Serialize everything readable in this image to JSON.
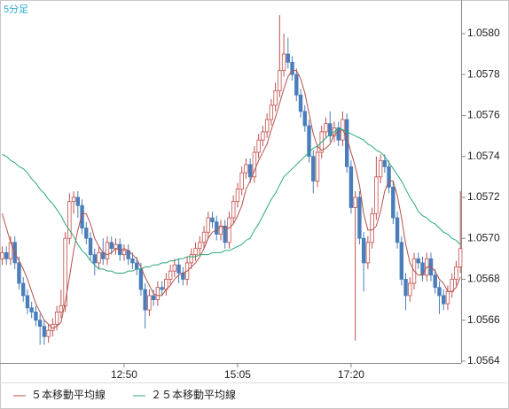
{
  "chart_data": {
    "type": "candlestick",
    "label": "5分足",
    "categories": [
      null,
      null,
      null,
      null,
      null,
      null,
      null,
      null,
      null,
      null,
      null,
      null,
      null,
      null,
      null,
      null,
      null,
      null,
      null,
      null,
      null,
      null,
      null,
      null,
      null,
      null,
      null,
      null,
      null,
      "12:50",
      null,
      null,
      null,
      null,
      null,
      null,
      null,
      null,
      null,
      null,
      null,
      null,
      null,
      null,
      null,
      null,
      null,
      null,
      null,
      null,
      null,
      null,
      null,
      null,
      null,
      null,
      "15:05",
      null,
      null,
      null,
      null,
      null,
      null,
      null,
      null,
      null,
      null,
      null,
      null,
      null,
      null,
      null,
      null,
      null,
      null,
      null,
      null,
      null,
      null,
      null,
      null,
      null,
      null,
      "17:20",
      null,
      null,
      null,
      null,
      null,
      null,
      null,
      null,
      null,
      null,
      null,
      null,
      null,
      null,
      null,
      null,
      null,
      null,
      null,
      null,
      null,
      null,
      null,
      null,
      null,
      null
    ],
    "open": [
      1.0569,
      1.05693,
      1.0569,
      1.05698,
      1.05688,
      1.05678,
      1.05672,
      1.05666,
      1.05664,
      1.0566,
      1.05657,
      1.05652,
      1.05655,
      1.05658,
      1.05664,
      1.05667,
      1.057,
      1.05718,
      1.0572,
      1.05716,
      1.05705,
      1.057,
      1.05692,
      1.05688,
      1.05693,
      1.0569,
      1.05698,
      1.05695,
      1.05697,
      1.05692,
      1.05694,
      1.0569,
      1.05688,
      1.05685,
      1.05675,
      1.05665,
      1.05672,
      1.0567,
      1.05676,
      1.05675,
      1.0568,
      1.05684,
      1.05687,
      1.05683,
      1.0568,
      1.05688,
      1.05692,
      1.05695,
      1.05698,
      1.05703,
      1.0571,
      1.05708,
      1.05702,
      1.05706,
      1.05698,
      1.0571,
      1.05718,
      1.05724,
      1.05732,
      1.05736,
      1.0573,
      1.05742,
      1.05748,
      1.05752,
      1.05758,
      1.05765,
      1.05772,
      1.05782,
      1.0579,
      1.05786,
      1.0578,
      1.0577,
      1.05762,
      1.05755,
      1.0574,
      1.05728,
      1.05742,
      1.05752,
      1.05756,
      1.0575,
      1.05754,
      1.05748,
      1.05758,
      1.05735,
      1.05715,
      1.0572,
      1.057,
      1.05688,
      1.05698,
      1.05712,
      1.0573,
      1.05738,
      1.05735,
      1.05725,
      1.0571,
      1.05698,
      1.0568,
      1.05672,
      1.05678,
      1.0569,
      1.05688,
      1.05682,
      1.0569,
      1.05682,
      1.05676,
      1.05672,
      1.05668,
      1.05674,
      1.0568,
      1.05686
    ],
    "high": [
      1.05696,
      1.05696,
      1.05701,
      1.05701,
      1.05691,
      1.05681,
      1.05675,
      1.05669,
      1.05667,
      1.05663,
      1.0566,
      1.05658,
      1.05661,
      1.05667,
      1.05675,
      1.05703,
      1.05722,
      1.05723,
      1.05723,
      1.05719,
      1.05708,
      1.05703,
      1.05695,
      1.05696,
      1.057,
      1.05701,
      1.05701,
      1.057,
      1.057,
      1.05697,
      1.05697,
      1.05693,
      1.05691,
      1.05688,
      1.05678,
      1.05675,
      1.05675,
      1.05679,
      1.05679,
      1.05683,
      1.05687,
      1.0569,
      1.0569,
      1.05686,
      1.05691,
      1.05695,
      1.05698,
      1.05701,
      1.05706,
      1.05713,
      1.05713,
      1.05711,
      1.05709,
      1.05709,
      1.05713,
      1.05721,
      1.05727,
      1.05735,
      1.05739,
      1.05739,
      1.05745,
      1.05751,
      1.05755,
      1.05761,
      1.05768,
      1.05776,
      1.05809,
      1.058,
      1.05798,
      1.05789,
      1.05783,
      1.05773,
      1.05765,
      1.05758,
      1.05743,
      1.05745,
      1.05755,
      1.05759,
      1.05762,
      1.05757,
      1.05757,
      1.05762,
      1.05761,
      1.05738,
      1.05723,
      1.05723,
      1.05703,
      1.05701,
      1.05715,
      1.0574,
      1.05741,
      1.05741,
      1.05738,
      1.05728,
      1.05713,
      1.05701,
      1.05683,
      1.05681,
      1.05693,
      1.05693,
      1.05691,
      1.05693,
      1.05693,
      1.05685,
      1.05679,
      1.05675,
      1.05677,
      1.05683,
      1.05689,
      1.05723
    ],
    "low": [
      1.05687,
      1.05687,
      1.05687,
      1.05685,
      1.05675,
      1.05669,
      1.05663,
      1.05661,
      1.05657,
      1.05648,
      1.05648,
      1.05649,
      1.05652,
      1.05655,
      1.05661,
      1.05664,
      1.05697,
      1.05712,
      1.0571,
      1.05702,
      1.05697,
      1.05689,
      1.05682,
      1.05685,
      1.05687,
      1.05687,
      1.05692,
      1.05692,
      1.05689,
      1.05689,
      1.05687,
      1.05685,
      1.05682,
      1.05672,
      1.05656,
      1.05662,
      1.05667,
      1.05667,
      1.05672,
      1.05672,
      1.05677,
      1.05681,
      1.05678,
      1.05677,
      1.05677,
      1.05685,
      1.05689,
      1.05692,
      1.05695,
      1.057,
      1.05705,
      1.05699,
      1.05699,
      1.05695,
      1.05695,
      1.05707,
      1.05715,
      1.05721,
      1.05729,
      1.05727,
      1.05727,
      1.05739,
      1.05745,
      1.05749,
      1.05755,
      1.05762,
      1.05769,
      1.05779,
      1.05783,
      1.05777,
      1.05767,
      1.05759,
      1.05752,
      1.05737,
      1.05722,
      1.05725,
      1.05739,
      1.05749,
      1.05747,
      1.05747,
      1.05745,
      1.05745,
      1.05732,
      1.05712,
      1.0565,
      1.05697,
      1.05674,
      1.05685,
      1.05695,
      1.05709,
      1.05727,
      1.05732,
      1.05722,
      1.05707,
      1.05695,
      1.05677,
      1.05665,
      1.05669,
      1.05675,
      1.05685,
      1.05679,
      1.05679,
      1.05679,
      1.05673,
      1.05663,
      1.05665,
      1.05665,
      1.05671,
      1.05677,
      1.05683
    ],
    "close": [
      1.05693,
      1.0569,
      1.05698,
      1.05688,
      1.05678,
      1.05672,
      1.05666,
      1.05664,
      1.0566,
      1.05657,
      1.05652,
      1.05655,
      1.05658,
      1.05664,
      1.05667,
      1.057,
      1.05718,
      1.0572,
      1.05716,
      1.05705,
      1.057,
      1.05692,
      1.05688,
      1.05693,
      1.0569,
      1.05698,
      1.05695,
      1.05697,
      1.05692,
      1.05694,
      1.0569,
      1.05688,
      1.05685,
      1.05675,
      1.05665,
      1.05672,
      1.0567,
      1.05676,
      1.05675,
      1.0568,
      1.05684,
      1.05687,
      1.05683,
      1.0568,
      1.05688,
      1.05692,
      1.05695,
      1.05698,
      1.05703,
      1.0571,
      1.05708,
      1.05702,
      1.05706,
      1.05698,
      1.0571,
      1.05718,
      1.05724,
      1.05732,
      1.05736,
      1.0573,
      1.05742,
      1.05748,
      1.05752,
      1.05758,
      1.05765,
      1.05772,
      1.05782,
      1.0579,
      1.05786,
      1.0578,
      1.0577,
      1.05762,
      1.05755,
      1.0574,
      1.05728,
      1.05742,
      1.05752,
      1.05756,
      1.0575,
      1.05754,
      1.05748,
      1.05758,
      1.05735,
      1.05715,
      1.0572,
      1.057,
      1.05688,
      1.05698,
      1.05712,
      1.0573,
      1.05738,
      1.05735,
      1.05725,
      1.0571,
      1.05698,
      1.0568,
      1.05672,
      1.05678,
      1.0569,
      1.05688,
      1.05682,
      1.0569,
      1.05682,
      1.05676,
      1.05672,
      1.05668,
      1.05674,
      1.0568,
      1.05686,
      1.05695
    ],
    "up_color": "#c0504d",
    "down_color": "#4a7ebb",
    "series": [
      {
        "name": "５本移動平均線",
        "color": "#b5524a",
        "values": [
          1.05712,
          1.05705,
          1.05698,
          1.05693,
          1.05689,
          1.05685,
          1.0568,
          1.05674,
          1.05668,
          1.05664,
          1.0566,
          1.05658,
          1.05656,
          1.05657,
          1.05659,
          1.05669,
          1.05681,
          1.05694,
          1.05704,
          1.05712,
          1.05712,
          1.05707,
          1.057,
          1.05696,
          1.05693,
          1.05692,
          1.05693,
          1.05695,
          1.05694,
          1.05695,
          1.05694,
          1.05692,
          1.0569,
          1.05686,
          1.05681,
          1.05677,
          1.05673,
          1.05672,
          1.05672,
          1.05675,
          1.05677,
          1.0568,
          1.05682,
          1.05683,
          1.05684,
          1.05686,
          1.05688,
          1.05691,
          1.05695,
          1.057,
          1.05703,
          1.05704,
          1.05706,
          1.05705,
          1.05705,
          1.05707,
          1.05711,
          1.05716,
          1.05724,
          1.05728,
          1.05733,
          1.05738,
          1.05742,
          1.05746,
          1.05753,
          1.05759,
          1.05766,
          1.05773,
          1.05779,
          1.05782,
          1.05782,
          1.05778,
          1.05771,
          1.05761,
          1.05751,
          1.05745,
          1.05743,
          1.05744,
          1.05746,
          1.05751,
          1.05752,
          1.05753,
          1.05749,
          1.05742,
          1.05735,
          1.05726,
          1.05712,
          1.05704,
          1.05704,
          1.05706,
          1.05713,
          1.05723,
          1.05728,
          1.05728,
          1.05721,
          1.0571,
          1.05697,
          1.05688,
          1.05684,
          1.05682,
          1.05682,
          1.05686,
          1.05686,
          1.05684,
          1.0568,
          1.05678,
          1.05674,
          1.05674,
          1.05676,
          1.05681
        ]
      },
      {
        "name": "２５本移動平均線",
        "color": "#2aa876",
        "values": [
          1.05741,
          1.0574,
          1.05738,
          1.05737,
          1.05735,
          1.05734,
          1.05732,
          1.05729,
          1.05727,
          1.05724,
          1.05722,
          1.05719,
          1.05717,
          1.05714,
          1.05711,
          1.05707,
          1.05704,
          1.05701,
          1.05697,
          1.05694,
          1.05692,
          1.05689,
          1.05687,
          1.05685,
          1.05685,
          1.05684,
          1.05684,
          1.05683,
          1.05683,
          1.05683,
          1.05684,
          1.05684,
          1.05685,
          1.05685,
          1.05686,
          1.05686,
          1.05687,
          1.05687,
          1.05688,
          1.05688,
          1.05689,
          1.05689,
          1.0569,
          1.0569,
          1.05691,
          1.05691,
          1.05691,
          1.05692,
          1.05692,
          1.05692,
          1.05693,
          1.05693,
          1.05693,
          1.05694,
          1.05694,
          1.05695,
          1.05696,
          1.05697,
          1.05699,
          1.057,
          1.05704,
          1.05707,
          1.05711,
          1.05715,
          1.05719,
          1.05722,
          1.05726,
          1.0573,
          1.05732,
          1.05734,
          1.05736,
          1.05738,
          1.0574,
          1.05742,
          1.05744,
          1.05745,
          1.05747,
          1.05749,
          1.05751,
          1.05752,
          1.05754,
          1.05753,
          1.05752,
          1.05751,
          1.0575,
          1.05749,
          1.05748,
          1.05746,
          1.05745,
          1.05743,
          1.05742,
          1.0574,
          1.05737,
          1.05734,
          1.05731,
          1.05728,
          1.05724,
          1.0572,
          1.05717,
          1.05713,
          1.05711,
          1.0571,
          1.05708,
          1.05707,
          1.05705,
          1.05703,
          1.05702,
          1.057,
          1.05699,
          1.05697
        ]
      }
    ],
    "ylim": [
      1.056391,
      1.058164
    ],
    "yticks": [
      1.0564,
      1.0566,
      1.0568,
      {
        "value": 1.057,
        "label": "1.0570"
      },
      1.0572,
      1.0574,
      1.0576,
      1.0578,
      {
        "value": 1.058,
        "label": "1.0580"
      }
    ]
  }
}
